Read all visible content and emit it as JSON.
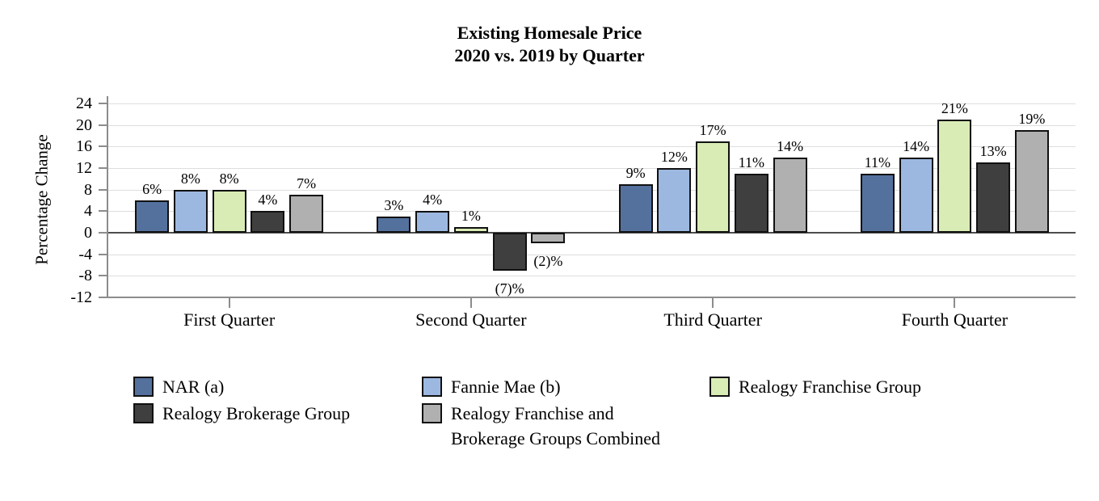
{
  "title": {
    "line1": "Existing Homesale Price",
    "line2": "2020 vs. 2019 by Quarter"
  },
  "colors": {
    "nar_blue": "#54719E",
    "fannie_light_blue": "#9CB8E0",
    "franchise_green": "#D9ECB5",
    "brokerage_dark_gray": "#3F3F3F",
    "combined_light_gray": "#B0B0B0",
    "gridline": "#DEDEDE",
    "axis_line": "#8C8C8C",
    "zero_line": "#4D4D4D",
    "bar_border": "#111111",
    "text": "#000000",
    "background": "#FFFFFF"
  },
  "chart_data": {
    "type": "bar",
    "title": "Existing Homesale Price 2020 vs. 2019 by Quarter",
    "title_lines": [
      "Existing Homesale Price",
      "2020 vs. 2019 by Quarter"
    ],
    "xlabel": "",
    "ylabel": "Percentage Change",
    "ylim": [
      -12,
      24
    ],
    "ytick_step": 4,
    "yticks": [
      24,
      20,
      16,
      12,
      8,
      4,
      0,
      -4,
      -8,
      -12
    ],
    "grid": "horizontal",
    "legend_position": "bottom",
    "categories": [
      "First Quarter",
      "Second Quarter",
      "Third Quarter",
      "Fourth Quarter"
    ],
    "series": [
      {
        "name": "NAR (a)",
        "color": "#54719E",
        "values": [
          6,
          3,
          9,
          11
        ],
        "labels": [
          "6%",
          "3%",
          "9%",
          "11%"
        ]
      },
      {
        "name": "Fannie Mae (b)",
        "color": "#9CB8E0",
        "values": [
          8,
          4,
          12,
          14
        ],
        "labels": [
          "8%",
          "4%",
          "12%",
          "14%"
        ]
      },
      {
        "name": "Realogy Franchise Group",
        "color": "#D9ECB5",
        "values": [
          8,
          1,
          17,
          21
        ],
        "labels": [
          "8%",
          "1%",
          "17%",
          "21%"
        ]
      },
      {
        "name": "Realogy Brokerage Group",
        "color": "#3F3F3F",
        "values": [
          4,
          -7,
          11,
          13
        ],
        "labels": [
          "4%",
          "(7)%",
          "11%",
          "13%"
        ]
      },
      {
        "name": "Realogy Franchise and Brokerage Groups Combined",
        "color": "#B0B0B0",
        "values": [
          7,
          -2,
          14,
          19
        ],
        "labels": [
          "7%",
          "(2)%",
          "14%",
          "19%"
        ]
      }
    ]
  },
  "legend": {
    "columns": [
      {
        "entries": [
          {
            "color": "#54719E",
            "lines": [
              "NAR (a)"
            ]
          },
          {
            "color": "#3F3F3F",
            "lines": [
              "Realogy Brokerage Group"
            ]
          }
        ]
      },
      {
        "entries": [
          {
            "color": "#9CB8E0",
            "lines": [
              "Fannie Mae (b)"
            ]
          },
          {
            "color": "#B0B0B0",
            "lines": [
              "Realogy Franchise and",
              "Brokerage Groups Combined"
            ]
          }
        ]
      },
      {
        "entries": [
          {
            "color": "#D9ECB5",
            "lines": [
              "Realogy Franchise Group"
            ]
          }
        ]
      }
    ]
  }
}
